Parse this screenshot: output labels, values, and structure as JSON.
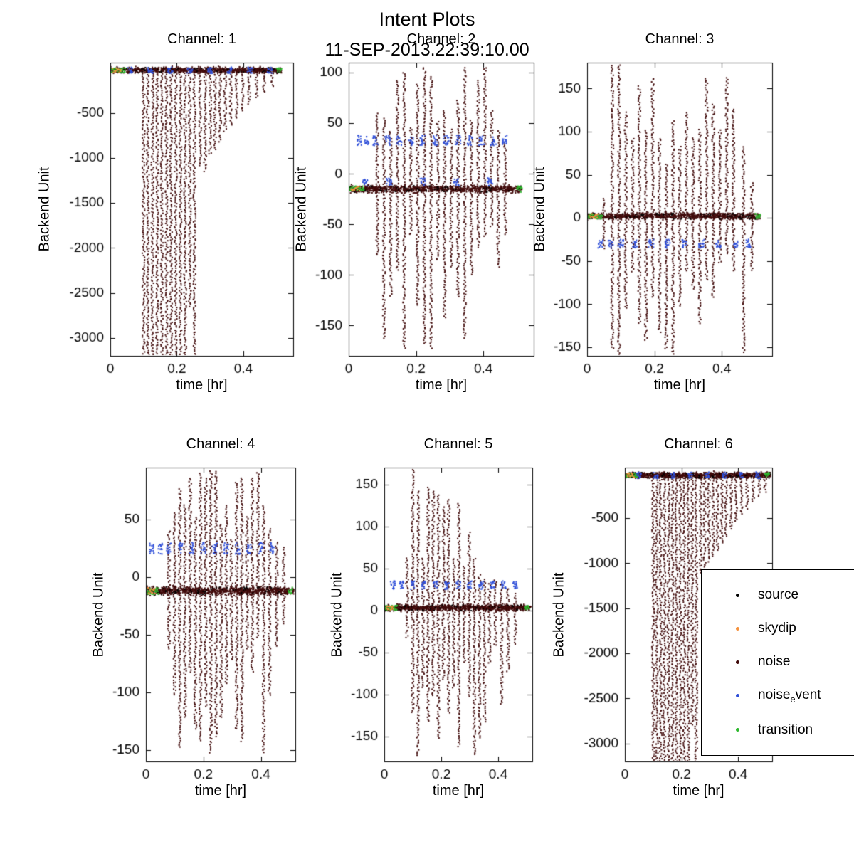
{
  "page": {
    "title": "Intent Plots",
    "subtitle": "11-SEP-2013.22:39:10.00"
  },
  "colors": {
    "source": "#000000",
    "skydip": "#f5923e",
    "noise": "#400a0a",
    "noise_event": "#2f4fd8",
    "transition": "#2eb82e"
  },
  "legend": {
    "items": [
      {
        "label": "source",
        "color": "#000000"
      },
      {
        "label": "skydip",
        "color": "#f5923e"
      },
      {
        "label": "noise",
        "color": "#400a0a"
      },
      {
        "pre": "noise",
        "sub": "e",
        "post": "vent",
        "color": "#2f4fd8"
      },
      {
        "label": "transition",
        "color": "#2eb82e"
      }
    ]
  },
  "chart_data": [
    {
      "type": "scatter",
      "title": "Channel: 1",
      "xlabel": "time [hr]",
      "ylabel": "Backend Unit",
      "xlim": [
        0,
        0.55
      ],
      "xticks": [
        0,
        0.2,
        0.4
      ],
      "ylim": [
        -3200,
        60
      ],
      "yticks": [
        -500,
        -1000,
        -1500,
        -2000,
        -2500,
        -3000
      ],
      "baseline": -25,
      "band": 45,
      "spikes": [
        [
          0.1,
          -3300,
          -5
        ],
        [
          0.113,
          -3300,
          -5
        ],
        [
          0.127,
          -3300,
          -5
        ],
        [
          0.141,
          -3300,
          -5
        ],
        [
          0.155,
          -3300,
          -5
        ],
        [
          0.169,
          -3300,
          -5
        ],
        [
          0.183,
          -3300,
          -5
        ],
        [
          0.197,
          -3300,
          -5
        ],
        [
          0.211,
          -3300,
          -5
        ],
        [
          0.225,
          -3300,
          -5
        ],
        [
          0.239,
          -2650,
          -5
        ],
        [
          0.253,
          -3300,
          -5
        ],
        [
          0.27,
          -1080,
          -5
        ],
        [
          0.285,
          -1150,
          -5
        ],
        [
          0.3,
          -960,
          -5
        ],
        [
          0.315,
          -900,
          -5
        ],
        [
          0.33,
          -820,
          -5
        ],
        [
          0.345,
          -700,
          -5
        ],
        [
          0.362,
          -640,
          -5
        ],
        [
          0.38,
          -560,
          -5
        ],
        [
          0.398,
          -480,
          -5
        ],
        [
          0.418,
          -400,
          -5
        ],
        [
          0.44,
          -330,
          -5
        ],
        [
          0.463,
          -270,
          -5
        ],
        [
          0.487,
          -200,
          -5
        ]
      ],
      "noise_events": {
        "y": -25,
        "spread": 35,
        "xs": [
          0.06,
          0.12,
          0.18,
          0.24,
          0.3,
          0.36,
          0.42,
          0.48
        ]
      },
      "transition_ranges": [
        [
          0,
          0.045
        ],
        [
          0.5,
          0.515
        ]
      ],
      "skydip_ranges": [
        [
          0.008,
          0.032
        ]
      ]
    },
    {
      "type": "scatter",
      "title": "Channel: 2",
      "xlabel": "time [hr]",
      "ylabel": "Backend Unit",
      "xlim": [
        0,
        0.55
      ],
      "xticks": [
        0,
        0.2,
        0.4
      ],
      "ylim": [
        -180,
        110
      ],
      "yticks": [
        100,
        50,
        0,
        -50,
        -100,
        -150
      ],
      "baseline": -15,
      "band": 5,
      "spikes": [
        [
          0.085,
          -80,
          60
        ],
        [
          0.105,
          -162,
          55
        ],
        [
          0.125,
          -120,
          42
        ],
        [
          0.145,
          -95,
          92
        ],
        [
          0.165,
          -172,
          100
        ],
        [
          0.185,
          -60,
          46
        ],
        [
          0.205,
          -130,
          88
        ],
        [
          0.225,
          -168,
          105
        ],
        [
          0.245,
          -172,
          96
        ],
        [
          0.265,
          -85,
          52
        ],
        [
          0.285,
          -142,
          62
        ],
        [
          0.305,
          -92,
          44
        ],
        [
          0.325,
          -122,
          72
        ],
        [
          0.345,
          -162,
          105
        ],
        [
          0.365,
          -100,
          52
        ],
        [
          0.385,
          -72,
          92
        ],
        [
          0.405,
          -62,
          105
        ],
        [
          0.425,
          -52,
          62
        ],
        [
          0.445,
          -92,
          42
        ],
        [
          0.465,
          -60,
          30
        ]
      ],
      "noise_events": {
        "y": 33,
        "spread": 5,
        "xs": [
          0.03,
          0.055,
          0.08,
          0.115,
          0.15,
          0.185,
          0.22,
          0.255,
          0.29,
          0.325,
          0.36,
          0.395,
          0.43,
          0.465
        ]
      },
      "noise_events2": {
        "y": -8,
        "spread": 4,
        "xs": [
          0.05,
          0.12,
          0.22,
          0.32,
          0.42
        ]
      },
      "transition_ranges": [
        [
          0,
          0.045
        ],
        [
          0.5,
          0.515
        ]
      ],
      "skydip_ranges": [
        [
          0.008,
          0.032
        ]
      ]
    },
    {
      "type": "scatter",
      "title": "Channel: 3",
      "xlabel": "time [hr]",
      "ylabel": "Backend Unit",
      "xlim": [
        0,
        0.55
      ],
      "xticks": [
        0,
        0.2,
        0.4
      ],
      "ylim": [
        -160,
        180
      ],
      "yticks": [
        150,
        100,
        50,
        0,
        -50,
        -100,
        -150
      ],
      "baseline": 2,
      "band": 5,
      "spikes": [
        [
          0.05,
          -35,
          22
        ],
        [
          0.075,
          -152,
          176
        ],
        [
          0.095,
          -172,
          180
        ],
        [
          0.115,
          -105,
          122
        ],
        [
          0.135,
          -62,
          92
        ],
        [
          0.155,
          -122,
          152
        ],
        [
          0.175,
          -142,
          102
        ],
        [
          0.195,
          -92,
          162
        ],
        [
          0.215,
          -132,
          92
        ],
        [
          0.235,
          -152,
          62
        ],
        [
          0.255,
          -158,
          112
        ],
        [
          0.275,
          -102,
          82
        ],
        [
          0.295,
          -62,
          122
        ],
        [
          0.315,
          -82,
          92
        ],
        [
          0.335,
          -122,
          102
        ],
        [
          0.355,
          -72,
          162
        ],
        [
          0.375,
          -92,
          132
        ],
        [
          0.395,
          -52,
          102
        ],
        [
          0.415,
          -42,
          162
        ],
        [
          0.435,
          -62,
          126
        ],
        [
          0.465,
          -155,
          82
        ],
        [
          0.49,
          -60,
          40
        ]
      ],
      "noise_events": {
        "y": -30,
        "spread": 5,
        "xs": [
          0.04,
          0.07,
          0.1,
          0.14,
          0.19,
          0.24,
          0.29,
          0.34,
          0.39,
          0.44,
          0.48
        ]
      },
      "transition_ranges": [
        [
          0,
          0.045
        ],
        [
          0.5,
          0.515
        ]
      ],
      "skydip_ranges": [
        [
          0.008,
          0.032
        ]
      ]
    },
    {
      "type": "scatter",
      "title": "Channel: 4",
      "xlabel": "time [hr]",
      "ylabel": "Backend Unit",
      "xlim": [
        0,
        0.52
      ],
      "xticks": [
        0,
        0.2,
        0.4
      ],
      "ylim": [
        -160,
        95
      ],
      "yticks": [
        50,
        0,
        -50,
        -100,
        -150
      ],
      "baseline": -12,
      "band": 5,
      "spikes": [
        [
          0.08,
          -62,
          40
        ],
        [
          0.1,
          -102,
          56
        ],
        [
          0.118,
          -148,
          76
        ],
        [
          0.136,
          -122,
          62
        ],
        [
          0.154,
          -82,
          86
        ],
        [
          0.172,
          -132,
          52
        ],
        [
          0.19,
          -142,
          90
        ],
        [
          0.208,
          -112,
          86
        ],
        [
          0.226,
          -152,
          92
        ],
        [
          0.244,
          -138,
          91
        ],
        [
          0.262,
          -122,
          46
        ],
        [
          0.28,
          -92,
          62
        ],
        [
          0.298,
          -72,
          32
        ],
        [
          0.316,
          -132,
          82
        ],
        [
          0.334,
          -142,
          86
        ],
        [
          0.352,
          -62,
          52
        ],
        [
          0.37,
          -82,
          86
        ],
        [
          0.39,
          -52,
          91
        ],
        [
          0.41,
          -152,
          62
        ],
        [
          0.43,
          -102,
          42
        ],
        [
          0.455,
          -60,
          30
        ],
        [
          0.48,
          -40,
          25
        ]
      ],
      "noise_events": {
        "y": 25,
        "spread": 5,
        "xs": [
          0.02,
          0.05,
          0.08,
          0.12,
          0.16,
          0.2,
          0.24,
          0.28,
          0.32,
          0.36,
          0.4,
          0.44
        ]
      },
      "transition_ranges": [
        [
          0,
          0.045
        ],
        [
          0.495,
          0.51
        ]
      ],
      "skydip_ranges": [
        [
          0.008,
          0.032
        ]
      ]
    },
    {
      "type": "scatter",
      "title": "Channel: 5",
      "xlabel": "time [hr]",
      "ylabel": "Backend Unit",
      "xlim": [
        0,
        0.52
      ],
      "xticks": [
        0,
        0.2,
        0.4
      ],
      "ylim": [
        -180,
        170
      ],
      "yticks": [
        150,
        100,
        50,
        0,
        -50,
        -100,
        -150
      ],
      "baseline": 3,
      "band": 5,
      "spikes": [
        [
          0.08,
          -32,
          62
        ],
        [
          0.1,
          -122,
          168
        ],
        [
          0.118,
          -172,
          142
        ],
        [
          0.136,
          -92,
          62
        ],
        [
          0.154,
          -132,
          147
        ],
        [
          0.172,
          -102,
          142
        ],
        [
          0.19,
          -152,
          137
        ],
        [
          0.208,
          -82,
          122
        ],
        [
          0.226,
          -122,
          132
        ],
        [
          0.244,
          -92,
          62
        ],
        [
          0.262,
          -162,
          127
        ],
        [
          0.28,
          -62,
          52
        ],
        [
          0.298,
          -102,
          92
        ],
        [
          0.316,
          -172,
          62
        ],
        [
          0.334,
          -152,
          42
        ],
        [
          0.352,
          -132,
          36
        ],
        [
          0.37,
          -62,
          32
        ],
        [
          0.39,
          -42,
          36
        ],
        [
          0.412,
          -112,
          32
        ],
        [
          0.435,
          -72,
          26
        ],
        [
          0.46,
          -40,
          20
        ]
      ],
      "noise_events": {
        "y": 30,
        "spread": 5,
        "xs": [
          0.03,
          0.06,
          0.1,
          0.14,
          0.18,
          0.22,
          0.26,
          0.3,
          0.34,
          0.38,
          0.42,
          0.46
        ]
      },
      "transition_ranges": [
        [
          0,
          0.045
        ],
        [
          0.495,
          0.51
        ]
      ],
      "skydip_ranges": [
        [
          0.008,
          0.032
        ]
      ]
    },
    {
      "type": "scatter",
      "title": "Channel: 6",
      "xlabel": "time [hr]",
      "ylabel": "Backend Unit",
      "xlim": [
        0,
        0.52
      ],
      "xticks": [
        0,
        0.2,
        0.4
      ],
      "ylim": [
        -3200,
        60
      ],
      "yticks": [
        -500,
        -1000,
        -1500,
        -2000,
        -2500,
        -3000
      ],
      "baseline": -25,
      "band": 45,
      "spikes": [
        [
          0.1,
          -3300,
          -5
        ],
        [
          0.113,
          -3300,
          -5
        ],
        [
          0.127,
          -3300,
          -5
        ],
        [
          0.14,
          -3300,
          -5
        ],
        [
          0.154,
          -3300,
          -5
        ],
        [
          0.168,
          -3300,
          -5
        ],
        [
          0.182,
          -3300,
          -5
        ],
        [
          0.196,
          -3300,
          -5
        ],
        [
          0.21,
          -3300,
          -5
        ],
        [
          0.224,
          -3300,
          -5
        ],
        [
          0.238,
          -2800,
          -5
        ],
        [
          0.252,
          -3300,
          -5
        ],
        [
          0.268,
          -1100,
          -5
        ],
        [
          0.282,
          -1050,
          -5
        ],
        [
          0.297,
          -980,
          -5
        ],
        [
          0.312,
          -920,
          -5
        ],
        [
          0.327,
          -860,
          -5
        ],
        [
          0.342,
          -780,
          -5
        ],
        [
          0.358,
          -700,
          -5
        ],
        [
          0.375,
          -620,
          -5
        ],
        [
          0.393,
          -540,
          -5
        ],
        [
          0.412,
          -460,
          -5
        ],
        [
          0.432,
          -390,
          -5
        ],
        [
          0.453,
          -320,
          -5
        ],
        [
          0.475,
          -260,
          -5
        ],
        [
          0.495,
          -210,
          -5
        ]
      ],
      "noise_events": {
        "y": -25,
        "spread": 35,
        "xs": [
          0.05,
          0.11,
          0.17,
          0.23,
          0.29,
          0.35,
          0.41,
          0.47
        ]
      },
      "transition_ranges": [
        [
          0,
          0.045
        ],
        [
          0.495,
          0.51
        ]
      ],
      "skydip_ranges": [
        [
          0.008,
          0.032
        ]
      ]
    }
  ]
}
